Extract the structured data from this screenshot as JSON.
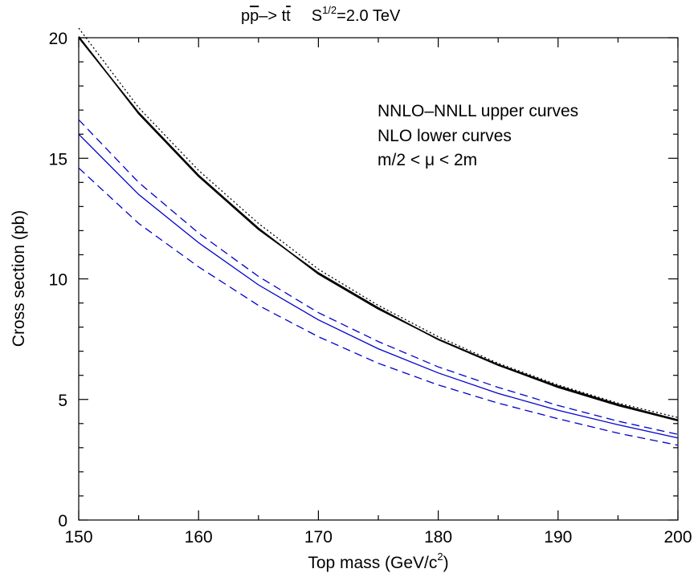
{
  "chart_data": {
    "type": "line",
    "title": {
      "process_p": "p",
      "process_pbar": "p",
      "process_arrow": "–> t",
      "process_tbar": "t",
      "energy_s": "S",
      "energy_exp": "1/2",
      "energy_value": "=2.0 TeV"
    },
    "xlabel": {
      "main": "Top mass (GeV/c",
      "sup": "2",
      "close": ")"
    },
    "ylabel": "Cross section (pb)",
    "xlim": [
      150,
      200
    ],
    "ylim": [
      0,
      20
    ],
    "x_ticks": [
      "150",
      "160",
      "170",
      "180",
      "190",
      "200"
    ],
    "y_ticks": [
      "0",
      "5",
      "10",
      "15",
      "20"
    ],
    "grid": false,
    "annotations": [
      "NNLO–NNLL upper curves",
      "NLO lower curves",
      "m/2 < μ < 2m"
    ],
    "x": [
      150,
      155,
      160,
      165,
      170,
      175,
      180,
      185,
      190,
      195,
      200
    ],
    "series": [
      {
        "color": "#000000",
        "style": "dotted",
        "values": [
          20.4,
          17.1,
          14.5,
          12.3,
          10.4,
          8.9,
          7.6,
          6.5,
          5.6,
          4.85,
          4.25
        ]
      },
      {
        "color": "#000000",
        "style": "solid",
        "values": [
          20.0,
          16.9,
          14.3,
          12.1,
          10.2,
          8.75,
          7.5,
          6.45,
          5.55,
          4.8,
          4.15
        ]
      },
      {
        "color": "#000000",
        "style": "solid",
        "values": [
          20.05,
          16.85,
          14.25,
          12.05,
          10.25,
          8.8,
          7.48,
          6.42,
          5.5,
          4.75,
          4.12
        ]
      },
      {
        "color": "#0000cc",
        "style": "dashed",
        "values": [
          16.6,
          14.0,
          11.9,
          10.1,
          8.6,
          7.4,
          6.35,
          5.5,
          4.75,
          4.1,
          3.55
        ]
      },
      {
        "color": "#0000cc",
        "style": "solid",
        "values": [
          16.0,
          13.5,
          11.5,
          9.75,
          8.3,
          7.1,
          6.1,
          5.25,
          4.55,
          3.95,
          3.4
        ]
      },
      {
        "color": "#0000cc",
        "style": "dashed",
        "values": [
          14.6,
          12.3,
          10.5,
          8.9,
          7.6,
          6.5,
          5.6,
          4.85,
          4.2,
          3.6,
          3.1
        ]
      }
    ]
  }
}
